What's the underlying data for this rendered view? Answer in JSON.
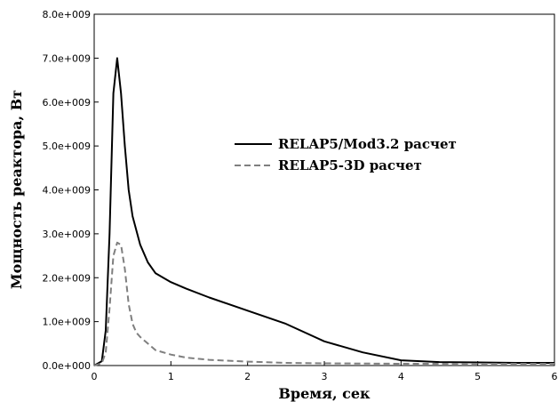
{
  "chart_data": {
    "type": "line",
    "title": "",
    "xlabel": "Время, сек",
    "ylabel": "Мощность реактора, Вт",
    "xlim": [
      0,
      6
    ],
    "ylim": [
      0,
      8000000000
    ],
    "x_ticks": [
      "0",
      "1",
      "2",
      "3",
      "4",
      "5",
      "6"
    ],
    "y_ticks": [
      "0.0e+000",
      "1.0e+009",
      "2.0e+009",
      "3.0e+009",
      "4.0e+009",
      "5.0e+009",
      "6.0e+009",
      "7.0e+009",
      "8.0e+009"
    ],
    "grid": false,
    "legend_position": "upper-right",
    "series": [
      {
        "name": "RELAP5/Mod3.2 расчет",
        "style": "solid",
        "color": "#000000",
        "x": [
          0,
          0.1,
          0.15,
          0.2,
          0.25,
          0.3,
          0.35,
          0.4,
          0.45,
          0.5,
          0.6,
          0.7,
          0.8,
          1.0,
          1.2,
          1.5,
          2.0,
          2.5,
          3.0,
          3.5,
          4.0,
          4.5,
          5.0,
          5.5,
          6.0
        ],
        "y": [
          0,
          100000000,
          800000000,
          3000000000,
          6200000000,
          7000000000,
          6200000000,
          5000000000,
          4000000000,
          3400000000,
          2750000000,
          2350000000,
          2100000000,
          1900000000,
          1750000000,
          1550000000,
          1250000000,
          950000000,
          550000000,
          300000000,
          120000000,
          80000000,
          70000000,
          60000000,
          60000000
        ]
      },
      {
        "name": "RELAP5-3D расчет",
        "style": "dashed",
        "color": "#7f7f7f",
        "x": [
          0,
          0.1,
          0.15,
          0.2,
          0.25,
          0.3,
          0.35,
          0.4,
          0.45,
          0.5,
          0.55,
          0.6,
          0.7,
          0.8,
          1.0,
          1.2,
          1.5,
          2.0,
          2.5,
          3.0,
          4.0,
          5.0,
          6.0
        ],
        "y": [
          0,
          50000000,
          300000000,
          1300000000,
          2500000000,
          2800000000,
          2750000000,
          2200000000,
          1400000000,
          950000000,
          750000000,
          650000000,
          500000000,
          350000000,
          250000000,
          180000000,
          130000000,
          90000000,
          60000000,
          50000000,
          40000000,
          40000000,
          40000000
        ]
      }
    ]
  }
}
